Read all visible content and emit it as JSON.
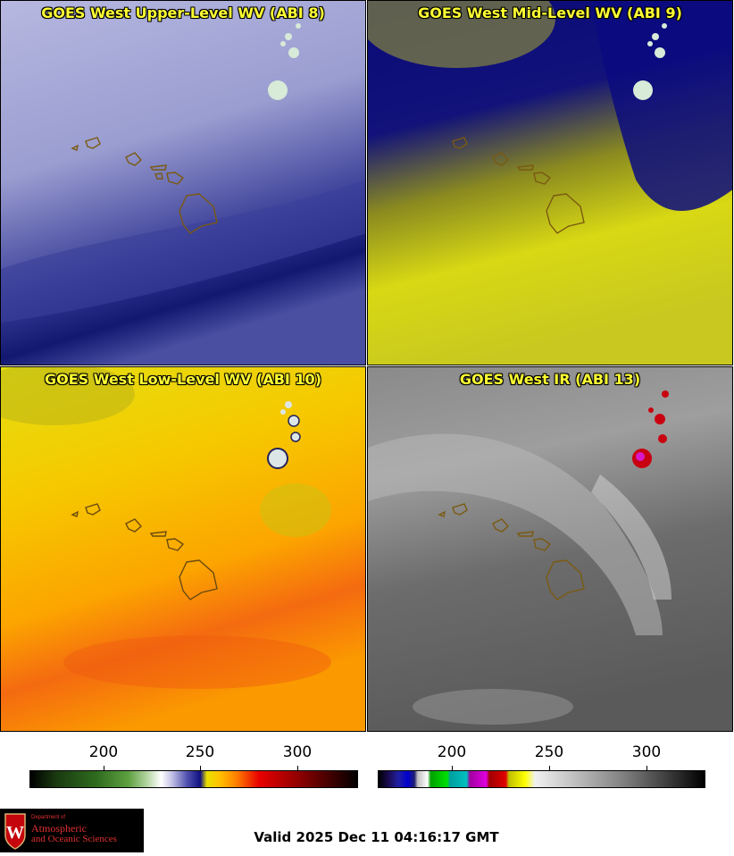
{
  "panels": [
    {
      "title": "GOES West Upper-Level WV (ABI 8)",
      "colorscale": "blue-white"
    },
    {
      "title": "GOES West Mid-Level WV (ABI 9)",
      "colorscale": "navy-yellow"
    },
    {
      "title": "GOES West Low-Level WV (ABI 10)",
      "colorscale": "yellow-orange"
    },
    {
      "title": "GOES West IR (ABI 13)",
      "colorscale": "grayscale-enhanced"
    }
  ],
  "colorbars": {
    "left": {
      "ticks": [
        "200",
        "250",
        "300"
      ]
    },
    "right": {
      "ticks": [
        "200",
        "250",
        "300"
      ]
    }
  },
  "logo": {
    "line1": "Department of",
    "line2": "Atmospheric",
    "line3": "and Oceanic Sciences"
  },
  "valid_time": "Valid 2025 Dec 11 04:16:17 GMT"
}
